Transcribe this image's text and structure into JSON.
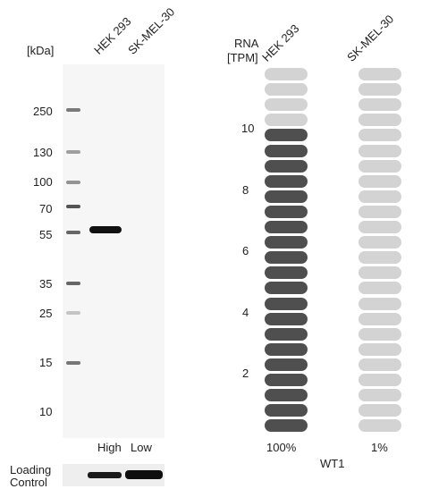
{
  "western_blot": {
    "kda_label": "[kDa]",
    "lane_labels": [
      "HEK 293",
      "SK-MEL-30"
    ],
    "markers": [
      "250",
      "130",
      "100",
      "70",
      "55",
      "35",
      "25",
      "15",
      "10"
    ],
    "expression_labels": [
      "High",
      "Low"
    ],
    "loading_control_label": [
      "Loading",
      "Control"
    ]
  },
  "rna": {
    "header_label": [
      "RNA",
      "[TPM]"
    ],
    "columns": [
      {
        "name": "HEK 293",
        "percent": "100%"
      },
      {
        "name": "SK-MEL-30",
        "percent": "1%"
      }
    ],
    "scale_ticks": [
      "10",
      "8",
      "6",
      "4",
      "2"
    ],
    "gene": "WT1",
    "colors": {
      "filled": "#4f4f4f",
      "empty": "#d3d3d3"
    }
  }
}
